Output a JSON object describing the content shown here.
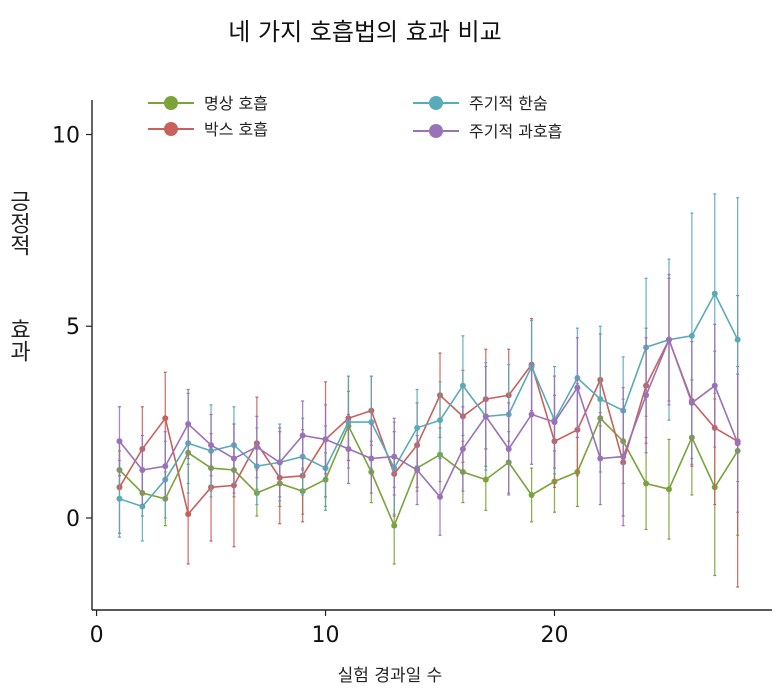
{
  "chart_data": {
    "type": "line",
    "title": "네 가지 호흡법의 효과 비교",
    "xlabel": "실험 경과일 수",
    "ylabel_lines": [
      "긍정적",
      "효과"
    ],
    "xlim": [
      -0.2,
      29.5
    ],
    "ylim": [
      -2.4,
      10.9
    ],
    "x_ticks": [
      0,
      10,
      20
    ],
    "y_ticks": [
      0,
      5,
      10
    ],
    "grid": false,
    "legend_placement": "top",
    "x": [
      1,
      2,
      3,
      4,
      5,
      6,
      7,
      8,
      9,
      10,
      11,
      12,
      13,
      14,
      15,
      16,
      17,
      18,
      19,
      20,
      21,
      22,
      23,
      24,
      25,
      26,
      27,
      28
    ],
    "series": [
      {
        "name": "명상 호흡",
        "color": "#7aa33a",
        "values": [
          1.25,
          0.65,
          0.5,
          1.7,
          1.3,
          1.25,
          0.65,
          0.9,
          0.7,
          1.0,
          2.4,
          1.2,
          -0.2,
          1.3,
          1.65,
          1.2,
          1.0,
          1.45,
          0.6,
          0.95,
          1.2,
          2.6,
          2.0,
          0.9,
          0.75,
          2.1,
          0.8,
          1.75
        ],
        "errors": [
          0.5,
          0.6,
          0.7,
          0.8,
          0.6,
          0.7,
          0.6,
          0.6,
          0.6,
          0.7,
          0.9,
          0.8,
          1.0,
          0.6,
          0.7,
          0.8,
          0.8,
          0.8,
          0.7,
          0.8,
          0.9,
          1.0,
          1.1,
          1.2,
          1.3,
          1.5,
          2.3,
          2.2
        ]
      },
      {
        "name": "박스 호흡",
        "color": "#c8605c",
        "values": [
          0.8,
          1.8,
          2.6,
          0.1,
          0.8,
          0.85,
          1.95,
          1.05,
          1.1,
          2.05,
          2.6,
          2.8,
          1.15,
          1.9,
          3.2,
          2.65,
          3.1,
          3.2,
          4.0,
          2.0,
          2.3,
          3.6,
          1.45,
          3.45,
          4.65,
          3.05,
          2.35,
          2.0
        ],
        "errors": [
          1.2,
          1.1,
          1.2,
          1.3,
          1.4,
          1.6,
          1.2,
          1.2,
          1.2,
          1.5,
          1.1,
          0.9,
          1.1,
          1.1,
          1.1,
          1.2,
          1.3,
          1.2,
          1.2,
          1.2,
          1.2,
          1.2,
          1.4,
          1.5,
          1.6,
          1.7,
          2.0,
          3.8
        ]
      },
      {
        "name": "주기적 한숨",
        "color": "#5aabb8",
        "values": [
          0.5,
          0.3,
          1.0,
          1.95,
          1.75,
          1.9,
          1.35,
          1.45,
          1.6,
          1.3,
          2.5,
          2.5,
          1.3,
          2.35,
          2.55,
          3.45,
          2.65,
          2.7,
          3.95,
          2.55,
          3.65,
          3.1,
          2.8,
          4.45,
          4.65,
          4.75,
          5.85,
          4.65
        ],
        "errors": [
          1.0,
          0.9,
          1.0,
          1.3,
          1.2,
          1.0,
          1.0,
          1.0,
          1.0,
          1.1,
          1.2,
          1.2,
          1.2,
          1.0,
          1.0,
          1.3,
          1.4,
          1.3,
          1.2,
          1.4,
          1.3,
          1.9,
          1.4,
          1.8,
          2.1,
          3.2,
          2.6,
          3.7
        ]
      },
      {
        "name": "주기적 과호흡",
        "color": "#9a72b8",
        "values": [
          2.0,
          1.25,
          1.35,
          2.45,
          1.9,
          1.55,
          1.85,
          1.45,
          2.15,
          2.05,
          1.8,
          1.55,
          1.6,
          1.25,
          0.55,
          1.8,
          2.65,
          1.8,
          2.7,
          2.5,
          3.4,
          1.55,
          1.6,
          3.2,
          4.65,
          3.0,
          3.45,
          1.95
        ],
        "errors": [
          0.9,
          0.9,
          0.9,
          0.9,
          0.8,
          0.9,
          0.8,
          0.9,
          0.9,
          0.9,
          0.9,
          0.9,
          1.0,
          0.9,
          1.0,
          1.1,
          1.3,
          1.2,
          1.3,
          1.2,
          1.3,
          1.2,
          1.8,
          1.5,
          1.7,
          1.6,
          1.6,
          1.8
        ]
      }
    ]
  }
}
